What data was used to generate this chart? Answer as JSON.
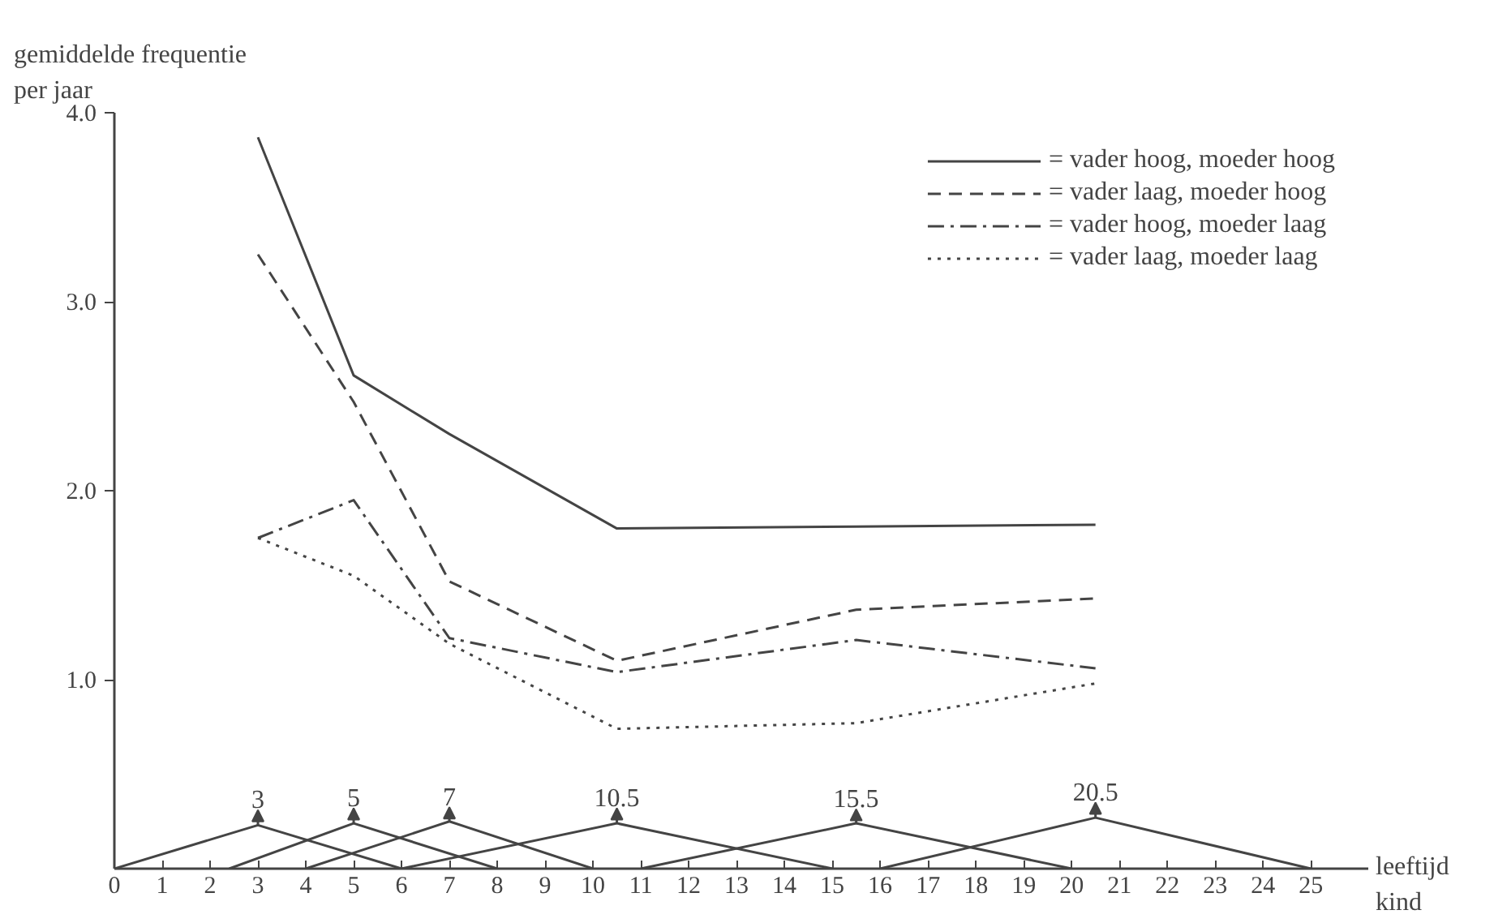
{
  "chart_data": {
    "type": "line",
    "ylabel": "gemiddelde frequentie\nper jaar",
    "xlabel": "leeftijd\nkind",
    "x": [
      3,
      5,
      7,
      10.5,
      15.5,
      20.5
    ],
    "series": [
      {
        "name": "= vader hoog, moeder hoog",
        "color": "#444444",
        "line_style": "solid",
        "values": [
          3.87,
          2.61,
          2.3,
          1.8,
          1.81,
          1.82
        ]
      },
      {
        "name": "= vader laag, moeder hoog",
        "color": "#444444",
        "line_style": "dashed",
        "values": [
          3.25,
          2.47,
          1.52,
          1.1,
          1.37,
          1.43
        ]
      },
      {
        "name": "= vader hoog, moeder laag",
        "color": "#444444",
        "line_style": "dashdot",
        "values": [
          1.75,
          1.95,
          1.22,
          1.04,
          1.21,
          1.06
        ]
      },
      {
        "name": "= vader laag, moeder laag",
        "color": "#444444",
        "line_style": "dotted",
        "values": [
          1.75,
          1.55,
          1.19,
          0.74,
          0.77,
          0.98
        ]
      },
      {
        "type": "line",
        "color": "#444444",
        "line_style": "solid",
        "x": [
          0,
          3,
          6
        ],
        "values": [
          0,
          0.23,
          0
        ]
      },
      {
        "type": "line",
        "color": "#444444",
        "line_style": "solid",
        "x": [
          2.4,
          5,
          8
        ],
        "values": [
          0,
          0.24,
          0
        ]
      },
      {
        "type": "line",
        "color": "#444444",
        "line_style": "solid",
        "x": [
          4,
          7,
          10
        ],
        "values": [
          0,
          0.25,
          0
        ]
      },
      {
        "type": "line",
        "color": "#444444",
        "line_style": "solid",
        "x": [
          6,
          10.5,
          15
        ],
        "values": [
          0,
          0.24,
          0
        ]
      },
      {
        "type": "line",
        "color": "#444444",
        "line_style": "solid",
        "x": [
          11,
          15.5,
          20
        ],
        "values": [
          0,
          0.24,
          0
        ]
      },
      {
        "type": "line",
        "color": "#444444",
        "line_style": "solid",
        "x": [
          16,
          20.5,
          25
        ],
        "values": [
          0,
          0.27,
          0
        ]
      }
    ],
    "annotations": [
      {
        "text": "3",
        "x": 3,
        "y": 0.23
      },
      {
        "text": "5",
        "x": 5,
        "y": 0.24
      },
      {
        "text": "7",
        "x": 7,
        "y": 0.245
      },
      {
        "text": "10.5",
        "x": 10.5,
        "y": 0.24
      },
      {
        "text": "15.5",
        "x": 15.5,
        "y": 0.235
      },
      {
        "text": "20.5",
        "x": 20.5,
        "y": 0.27
      }
    ],
    "xlim": [
      0,
      26.2
    ],
    "ylim": [
      0,
      4
    ],
    "xticks": [
      0,
      1,
      2,
      3,
      4,
      5,
      6,
      7,
      8,
      9,
      10,
      11,
      12,
      13,
      14,
      15,
      16,
      17,
      18,
      19,
      20,
      21,
      22,
      23,
      24,
      25
    ],
    "yticks": [
      {
        "value": 1,
        "label": "1.0"
      },
      {
        "value": 2,
        "label": "2.0"
      },
      {
        "value": 3,
        "label": "3.0"
      },
      {
        "value": 4,
        "label": "4.0"
      }
    ],
    "grid": false,
    "legend": "top right",
    "marker": "none"
  }
}
